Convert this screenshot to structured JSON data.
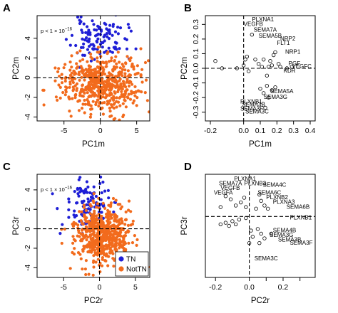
{
  "figure": {
    "colors": {
      "tn": "#1f1fd6",
      "nottn": "#f26b1d",
      "circle_stroke": "#000000"
    }
  },
  "chart_data": [
    {
      "panel": "A",
      "type": "scatter",
      "xlabel": "PC1m",
      "ylabel": "PC2m",
      "xlim": [
        -8.7,
        6.8
      ],
      "ylim": [
        -4.4,
        6.3
      ],
      "xticks": [
        -5,
        0,
        5
      ],
      "yticks": [
        -4,
        -2,
        0,
        2,
        4
      ],
      "annotation": {
        "base": "p < 1 × 10",
        "exp": "−16"
      },
      "ref_lines": {
        "x": 0,
        "y": 0
      },
      "series": [
        {
          "name": "TN",
          "color": "#1f1fd6",
          "n": 110,
          "seed": 11,
          "x_mean": -0.2,
          "x_sd": 1.9,
          "y_mean": 3.9,
          "y_sd": 1.0
        },
        {
          "name": "NotTN",
          "color": "#f26b1d",
          "n": 560,
          "seed": 12,
          "x_mean": 0.2,
          "x_sd": 2.6,
          "y_mean": -0.6,
          "y_sd": 1.35
        }
      ]
    },
    {
      "panel": "B",
      "type": "scatter",
      "xlabel": "PC1m",
      "ylabel": "PC2m",
      "xlim": [
        -0.23,
        0.43
      ],
      "ylim": [
        -0.36,
        0.36
      ],
      "xticks": [
        -0.2,
        0,
        0.1,
        0.2,
        0.3,
        0.4
      ],
      "xtick_labels": [
        "-0.2",
        "0.0",
        "0.1",
        "0.2",
        "0.3",
        "0.4"
      ],
      "yticks": [
        -0.3,
        -0.2,
        -0.1,
        0,
        0.1,
        0.2,
        0.3
      ],
      "ytick_labels": [
        "-0.3",
        "-0.2",
        "-0.1",
        "0.0",
        "0.1",
        "0.2",
        "0.3"
      ],
      "ref_lines": {
        "x": 0,
        "y": 0
      },
      "points": [
        {
          "x": -0.17,
          "y": 0.05
        },
        {
          "x": -0.13,
          "y": 0.0
        },
        {
          "x": -0.04,
          "y": 0.0
        },
        {
          "x": 0.0,
          "y": 0.02
        },
        {
          "x": 0.01,
          "y": 0.06
        },
        {
          "x": 0.02,
          "y": 0.08
        },
        {
          "x": 0.03,
          "y": -0.02
        },
        {
          "x": 0.05,
          "y": 0.23
        },
        {
          "x": 0.07,
          "y": 0.06
        },
        {
          "x": 0.09,
          "y": 0.03
        },
        {
          "x": 0.11,
          "y": 0.01
        },
        {
          "x": 0.12,
          "y": 0.06
        },
        {
          "x": 0.14,
          "y": -0.05
        },
        {
          "x": 0.15,
          "y": 0.01
        },
        {
          "x": 0.16,
          "y": 0.05
        },
        {
          "x": 0.17,
          "y": 0.02
        },
        {
          "x": 0.18,
          "y": 0.09
        },
        {
          "x": 0.19,
          "y": 0.11
        },
        {
          "x": 0.21,
          "y": 0.03
        },
        {
          "x": 0.22,
          "y": 0.01
        },
        {
          "x": 0.26,
          "y": 0.0
        },
        {
          "x": 0.29,
          "y": 0.01
        },
        {
          "x": 0.1,
          "y": -0.14
        },
        {
          "x": 0.12,
          "y": -0.17
        },
        {
          "x": 0.14,
          "y": -0.12
        },
        {
          "x": 0.15,
          "y": -0.2
        },
        {
          "x": 0.17,
          "y": -0.15
        },
        {
          "x": 0.19,
          "y": -0.13
        },
        {
          "x": 0.13,
          "y": -0.27
        }
      ],
      "labels": [
        {
          "text": "PLXNA1",
          "x": 0.05,
          "y": 0.32
        },
        {
          "text": "VEGFB",
          "x": 0.0,
          "y": 0.29
        },
        {
          "text": "SEMA7A",
          "x": 0.06,
          "y": 0.25
        },
        {
          "text": "SEMA5B",
          "x": 0.09,
          "y": 0.21
        },
        {
          "text": "NRP2",
          "x": 0.22,
          "y": 0.19
        },
        {
          "text": "FLT1",
          "x": 0.2,
          "y": 0.16
        },
        {
          "text": "NRP1",
          "x": 0.25,
          "y": 0.1
        },
        {
          "text": "PGF",
          "x": 0.27,
          "y": 0.02
        },
        {
          "text": "VEGFC",
          "x": 0.29,
          "y": 0.0
        },
        {
          "text": "KDR",
          "x": 0.24,
          "y": -0.03
        },
        {
          "text": "SEMA5A",
          "x": 0.16,
          "y": -0.17
        },
        {
          "text": "SEMA3G",
          "x": 0.12,
          "y": -0.21
        },
        {
          "text": "PLXNB1",
          "x": -0.02,
          "y": -0.24
        },
        {
          "text": "SEMA3B",
          "x": -0.01,
          "y": -0.26
        },
        {
          "text": "SEMA3F",
          "x": -0.02,
          "y": -0.29
        },
        {
          "text": "SEMA3C",
          "x": 0.01,
          "y": -0.31
        }
      ]
    },
    {
      "panel": "C",
      "type": "scatter",
      "xlabel": "PC2r",
      "ylabel": "PC3r",
      "xlim": [
        -8.7,
        7.0
      ],
      "ylim": [
        -5.0,
        5.6
      ],
      "xticks": [
        -5,
        0,
        5
      ],
      "yticks": [
        -4,
        -2,
        0,
        2,
        4
      ],
      "annotation": {
        "base": "p < 1 × 10",
        "exp": "−16"
      },
      "ref_lines": {
        "x": 0,
        "y": 0
      },
      "legend": {
        "position": "bottom-right",
        "items": [
          "TN",
          "NotTN"
        ]
      },
      "series": [
        {
          "name": "TN",
          "color": "#1f1fd6",
          "n": 120,
          "seed": 31,
          "x_mean": -1.6,
          "x_sd": 1.5,
          "y_mean": 2.6,
          "y_sd": 1.3
        },
        {
          "name": "NotTN",
          "color": "#f26b1d",
          "n": 620,
          "seed": 32,
          "x_mean": 0.4,
          "x_sd": 1.8,
          "y_mean": -0.7,
          "y_sd": 1.4
        }
      ]
    },
    {
      "panel": "D",
      "type": "scatter",
      "xlabel": "PC2r",
      "ylabel": "PC3r",
      "xlim": [
        -0.26,
        0.39
      ],
      "ylim": [
        -0.39,
        0.27
      ],
      "xticks": [
        -0.2,
        0,
        0.2
      ],
      "xtick_labels": [
        "-0.2",
        "0.0",
        "0.2"
      ],
      "extra_x_gridticks": [
        0.1,
        0.3
      ],
      "yticks": [],
      "ref_lines": {
        "x": 0,
        "y": 0
      },
      "points": [
        {
          "x": -0.17,
          "y": 0.06
        },
        {
          "x": -0.14,
          "y": 0.13
        },
        {
          "x": -0.11,
          "y": 0.11
        },
        {
          "x": -0.08,
          "y": 0.07
        },
        {
          "x": -0.05,
          "y": 0.09
        },
        {
          "x": -0.03,
          "y": 0.12
        },
        {
          "x": -0.02,
          "y": 0.06
        },
        {
          "x": 0.04,
          "y": 0.05
        },
        {
          "x": 0.06,
          "y": 0.14
        },
        {
          "x": 0.07,
          "y": 0.1
        },
        {
          "x": 0.09,
          "y": 0.07
        },
        {
          "x": 0.11,
          "y": 0.05
        },
        {
          "x": -0.17,
          "y": -0.05
        },
        {
          "x": -0.14,
          "y": -0.04
        },
        {
          "x": -0.12,
          "y": -0.06
        },
        {
          "x": -0.1,
          "y": -0.03
        },
        {
          "x": -0.08,
          "y": -0.05
        },
        {
          "x": -0.06,
          "y": -0.02
        },
        {
          "x": -0.02,
          "y": -0.01
        },
        {
          "x": 0.01,
          "y": -0.09
        },
        {
          "x": 0.02,
          "y": -0.13
        },
        {
          "x": 0.05,
          "y": -0.08
        },
        {
          "x": 0.07,
          "y": -0.11
        },
        {
          "x": 0.09,
          "y": -0.14
        },
        {
          "x": 0.13,
          "y": -0.11
        },
        {
          "x": 0.0,
          "y": -0.17
        },
        {
          "x": 0.06,
          "y": -0.17
        }
      ],
      "labels": [
        {
          "text": "PLXNA1",
          "x": -0.09,
          "y": 0.23
        },
        {
          "text": "PLXNB3",
          "x": -0.03,
          "y": 0.2
        },
        {
          "text": "SEMA7A",
          "x": -0.18,
          "y": 0.2
        },
        {
          "text": "SEMA4C",
          "x": 0.08,
          "y": 0.19
        },
        {
          "text": "VEGFB",
          "x": -0.17,
          "y": 0.17
        },
        {
          "text": "VEGFA",
          "x": -0.21,
          "y": 0.14
        },
        {
          "text": "SEMA6C",
          "x": 0.05,
          "y": 0.14
        },
        {
          "text": "PLXNB2",
          "x": 0.1,
          "y": 0.11
        },
        {
          "text": "PLXNA3",
          "x": 0.14,
          "y": 0.08
        },
        {
          "text": "SEMA6B",
          "x": 0.22,
          "y": 0.05
        },
        {
          "text": "PLXNB1",
          "x": 0.24,
          "y": -0.02
        },
        {
          "text": "SEMA4B",
          "x": 0.14,
          "y": -0.1
        },
        {
          "text": "SEMA3G",
          "x": 0.12,
          "y": -0.13
        },
        {
          "text": "SEMA3B",
          "x": 0.17,
          "y": -0.16
        },
        {
          "text": "SEMA3F",
          "x": 0.24,
          "y": -0.18
        },
        {
          "text": "SEMA3C",
          "x": 0.03,
          "y": -0.28
        }
      ]
    }
  ]
}
